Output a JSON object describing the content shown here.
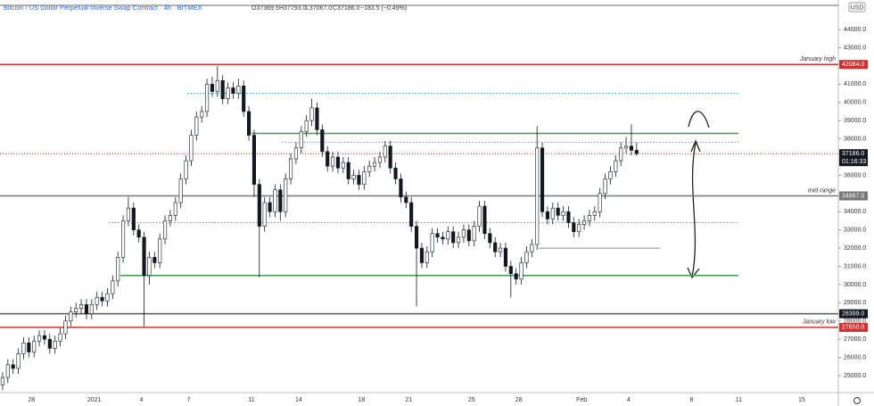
{
  "chart_data": {
    "type": "candlestick",
    "header": {
      "symbol": "Bitcoin / US Dollar Perpetual Inverse Swap Contract · 4h · BITMEX",
      "open": "O37369.5",
      "high": "H37793.0",
      "low": "L37067.0",
      "close": "C37186.0",
      "change": "−183.5 (−0.49%)"
    },
    "currency": "USD",
    "categories": [
      null,
      null,
      null,
      null,
      null,
      null,
      "28",
      null,
      null,
      null,
      null,
      null,
      null,
      null,
      null,
      null,
      null,
      null,
      "2021",
      null,
      null,
      null,
      null,
      null,
      null,
      null,
      null,
      "4",
      null,
      null,
      null,
      null,
      null,
      null,
      null,
      null,
      "7",
      null,
      null,
      null,
      null,
      null,
      null,
      null,
      null,
      null,
      null,
      null,
      "11",
      null,
      null,
      null,
      null,
      null,
      null,
      null,
      null,
      "14",
      null,
      null,
      null,
      null,
      null,
      null,
      null,
      null,
      null,
      null,
      null,
      "18",
      null,
      null,
      null,
      null,
      null,
      null,
      null,
      null,
      "21",
      null,
      null,
      null,
      null,
      null,
      null,
      null,
      null,
      null,
      null,
      null,
      "25",
      null,
      null,
      null,
      null,
      null,
      null,
      null,
      null,
      "28",
      null,
      null,
      null,
      null,
      null,
      null,
      null,
      null,
      null,
      null,
      null,
      "Feb",
      null,
      null,
      null,
      null,
      null,
      null,
      null,
      null,
      "4",
      null,
      null,
      null,
      null,
      null,
      null,
      null,
      null,
      null,
      null,
      null,
      "8",
      null,
      null,
      null,
      null,
      null,
      null,
      null,
      null,
      "11",
      null,
      null,
      null,
      null,
      null,
      null,
      null,
      null,
      null,
      null,
      null,
      "15",
      null,
      null,
      null,
      null,
      null,
      null
    ],
    "values": [
      [
        24500,
        25200,
        24200,
        24900
      ],
      [
        24900,
        25900,
        24600,
        25600
      ],
      [
        25600,
        25900,
        25100,
        25400
      ],
      [
        25400,
        26500,
        25100,
        26200
      ],
      [
        26200,
        27100,
        25900,
        26800
      ],
      [
        26800,
        27100,
        26000,
        26300
      ],
      [
        26300,
        27200,
        26000,
        26900
      ],
      [
        26900,
        27500,
        26600,
        27200
      ],
      [
        27200,
        27500,
        26700,
        27000
      ],
      [
        27000,
        27300,
        26200,
        26500
      ],
      [
        26500,
        27200,
        26200,
        26900
      ],
      [
        26900,
        27600,
        26600,
        27300
      ],
      [
        27300,
        28300,
        27000,
        28000
      ],
      [
        28000,
        28800,
        27700,
        28500
      ],
      [
        28500,
        29000,
        28200,
        28700
      ],
      [
        28700,
        29200,
        28400,
        28900
      ],
      [
        28900,
        29200,
        28100,
        28400
      ],
      [
        28400,
        29200,
        28100,
        28900
      ],
      [
        28900,
        29600,
        28600,
        29300
      ],
      [
        29300,
        29600,
        28800,
        29100
      ],
      [
        29100,
        29800,
        28800,
        29500
      ],
      [
        29500,
        30500,
        29200,
        30200
      ],
      [
        30200,
        31800,
        29900,
        31500
      ],
      [
        31500,
        33800,
        31200,
        33500
      ],
      [
        33500,
        34800,
        33200,
        34200
      ],
      [
        34200,
        34500,
        32700,
        33000
      ],
      [
        33000,
        33300,
        32300,
        32600
      ],
      [
        32600,
        32900,
        27700,
        30500
      ],
      [
        30500,
        31800,
        30000,
        31500
      ],
      [
        31500,
        31800,
        30900,
        31200
      ],
      [
        31200,
        32800,
        30900,
        32500
      ],
      [
        32500,
        33800,
        32200,
        33500
      ],
      [
        33500,
        34100,
        33200,
        33800
      ],
      [
        33800,
        34800,
        33500,
        34500
      ],
      [
        34500,
        36100,
        34200,
        35800
      ],
      [
        35800,
        37100,
        35500,
        36800
      ],
      [
        36800,
        38500,
        36500,
        38200
      ],
      [
        38200,
        39500,
        37900,
        39200
      ],
      [
        39200,
        39800,
        38900,
        39500
      ],
      [
        39500,
        41300,
        39200,
        41000
      ],
      [
        41000,
        41400,
        40300,
        40600
      ],
      [
        40600,
        42000,
        40300,
        41200
      ],
      [
        41200,
        41500,
        39900,
        40200
      ],
      [
        40200,
        41100,
        39900,
        40800
      ],
      [
        40800,
        41100,
        40200,
        40500
      ],
      [
        40500,
        41300,
        40200,
        40900
      ],
      [
        40900,
        41200,
        39200,
        39500
      ],
      [
        39500,
        39800,
        37900,
        38200
      ],
      [
        38200,
        38500,
        34800,
        35500
      ],
      [
        35500,
        35800,
        30400,
        33200
      ],
      [
        33200,
        34800,
        32900,
        34500
      ],
      [
        34500,
        34800,
        33700,
        34000
      ],
      [
        34000,
        35500,
        33700,
        35200
      ],
      [
        35200,
        35500,
        33500,
        34000
      ],
      [
        34000,
        36100,
        33700,
        35800
      ],
      [
        35800,
        37200,
        35500,
        36900
      ],
      [
        36900,
        37800,
        36600,
        37500
      ],
      [
        37500,
        38700,
        37200,
        38400
      ],
      [
        38400,
        39300,
        38100,
        39000
      ],
      [
        39000,
        40200,
        38700,
        39700
      ],
      [
        39700,
        40000,
        38200,
        38500
      ],
      [
        38500,
        38800,
        37000,
        37300
      ],
      [
        37300,
        37600,
        36200,
        36500
      ],
      [
        36500,
        37300,
        36200,
        37000
      ],
      [
        37000,
        37300,
        36100,
        36400
      ],
      [
        36400,
        37000,
        36100,
        36700
      ],
      [
        36700,
        37000,
        35500,
        35800
      ],
      [
        35800,
        36300,
        35500,
        36000
      ],
      [
        36000,
        36300,
        35200,
        35500
      ],
      [
        35500,
        36500,
        35200,
        36200
      ],
      [
        36200,
        36800,
        35900,
        36500
      ],
      [
        36500,
        37000,
        36200,
        36700
      ],
      [
        36700,
        37300,
        36400,
        37000
      ],
      [
        37000,
        37900,
        36700,
        37600
      ],
      [
        37600,
        37900,
        36100,
        36400
      ],
      [
        36400,
        36700,
        35500,
        35800
      ],
      [
        35800,
        36100,
        34500,
        34800
      ],
      [
        34800,
        35100,
        34200,
        34500
      ],
      [
        34500,
        34800,
        32900,
        33200
      ],
      [
        33200,
        33500,
        28800,
        32000
      ],
      [
        32000,
        32300,
        30900,
        31200
      ],
      [
        31200,
        32100,
        30900,
        31800
      ],
      [
        31800,
        33100,
        31500,
        32800
      ],
      [
        32800,
        33100,
        32300,
        32600
      ],
      [
        32600,
        32900,
        32200,
        32500
      ],
      [
        32500,
        33200,
        32200,
        32900
      ],
      [
        32900,
        33200,
        32000,
        32300
      ],
      [
        32300,
        32900,
        32000,
        32600
      ],
      [
        32600,
        33300,
        32300,
        33000
      ],
      [
        33000,
        33300,
        32100,
        32400
      ],
      [
        32400,
        33500,
        32100,
        33200
      ],
      [
        33200,
        34600,
        32900,
        34300
      ],
      [
        34300,
        34600,
        32500,
        32800
      ],
      [
        32800,
        33100,
        32000,
        32300
      ],
      [
        32300,
        32600,
        31500,
        31800
      ],
      [
        31800,
        32300,
        31500,
        32000
      ],
      [
        32000,
        32300,
        30700,
        31000
      ],
      [
        31000,
        31300,
        29300,
        30600
      ],
      [
        30600,
        30900,
        30000,
        30300
      ],
      [
        30300,
        31500,
        30000,
        31200
      ],
      [
        31200,
        32100,
        30900,
        31800
      ],
      [
        31800,
        32500,
        31500,
        32200
      ],
      [
        32200,
        38700,
        31900,
        37500
      ],
      [
        37500,
        37800,
        33700,
        34000
      ],
      [
        34000,
        34300,
        33300,
        33600
      ],
      [
        33600,
        34500,
        33300,
        34200
      ],
      [
        34200,
        34500,
        33500,
        33800
      ],
      [
        33800,
        34300,
        33500,
        34000
      ],
      [
        34000,
        34300,
        33100,
        33400
      ],
      [
        33400,
        33700,
        32600,
        32900
      ],
      [
        32900,
        33600,
        32600,
        33300
      ],
      [
        33300,
        33800,
        33000,
        33500
      ],
      [
        33500,
        34100,
        33200,
        33800
      ],
      [
        33800,
        34300,
        33500,
        34000
      ],
      [
        34000,
        35300,
        33700,
        35000
      ],
      [
        35000,
        36100,
        34700,
        35800
      ],
      [
        35800,
        36500,
        35500,
        36200
      ],
      [
        36200,
        37100,
        35900,
        36800
      ],
      [
        36800,
        37800,
        36500,
        37500
      ],
      [
        37500,
        38100,
        37200,
        37600
      ],
      [
        37600,
        38800,
        37100,
        37369.5
      ],
      [
        37369.5,
        37793,
        37067,
        37186
      ],
      null,
      null,
      null,
      null,
      null,
      null,
      null,
      null,
      null,
      null,
      null,
      null,
      null,
      null,
      null,
      null,
      null,
      null,
      null,
      null,
      null,
      null,
      null,
      null,
      null,
      null,
      null,
      null,
      null,
      null,
      null,
      null,
      null,
      null,
      null,
      null,
      null,
      null
    ],
    "candle_color": "#131722",
    "ylim": [
      24070,
      45620
    ],
    "yticks": [
      {
        "value": 25000,
        "label": "25000.0"
      },
      {
        "value": 26000,
        "label": "26000.0"
      },
      {
        "value": 27000,
        "label": "27000.0"
      },
      {
        "value": 28000,
        "label": "28000.0"
      },
      {
        "value": 29000,
        "label": "29000.0"
      },
      {
        "value": 30000,
        "label": "30000.0"
      },
      {
        "value": 31000,
        "label": "31000.0"
      },
      {
        "value": 32000,
        "label": "32000.0"
      },
      {
        "value": 33000,
        "label": "33000.0"
      },
      {
        "value": 34000,
        "label": "34000.0"
      },
      {
        "value": 36000,
        "label": "36000.0"
      },
      {
        "value": 38000,
        "label": "38000.0"
      },
      {
        "value": 39000,
        "label": "39000.0"
      },
      {
        "value": 40000,
        "label": "40000.0"
      },
      {
        "value": 41000,
        "label": "41000.0"
      },
      {
        "value": 43000,
        "label": "43000.0"
      },
      {
        "value": 44000,
        "label": "44000.0"
      }
    ],
    "levels": [
      {
        "value": 42084,
        "label": "42084.0",
        "note": "January high",
        "color": "#d32f2f",
        "style": "solid"
      },
      {
        "value": 34867,
        "label": "34867.0",
        "note": "mid range",
        "color": "#777777",
        "style": "solid"
      },
      {
        "value": 28399,
        "label": "28399.0",
        "color": "#555555",
        "style": "solid"
      },
      {
        "value": 27650,
        "label": "27650.0",
        "note": "January low",
        "color": "#d32f2f",
        "style": "solid"
      },
      {
        "value": 38300,
        "color": "#3f9c52",
        "style": "solid"
      },
      {
        "value": 30500,
        "color": "#3f9c52",
        "style": "solid"
      },
      {
        "value": 40500,
        "color": "#29a8d9",
        "style": "dotted"
      },
      {
        "value": 37800,
        "color": "#29a8d9",
        "style": "dotted"
      },
      {
        "value": 33400,
        "color": "#29a8d9",
        "style": "dotted"
      },
      {
        "value": 32000,
        "color": "#888888",
        "style": "solid"
      }
    ],
    "last": {
      "value": 37186,
      "label": "37186.0",
      "countdown": "01:16:33",
      "color": "#c0392b"
    }
  }
}
